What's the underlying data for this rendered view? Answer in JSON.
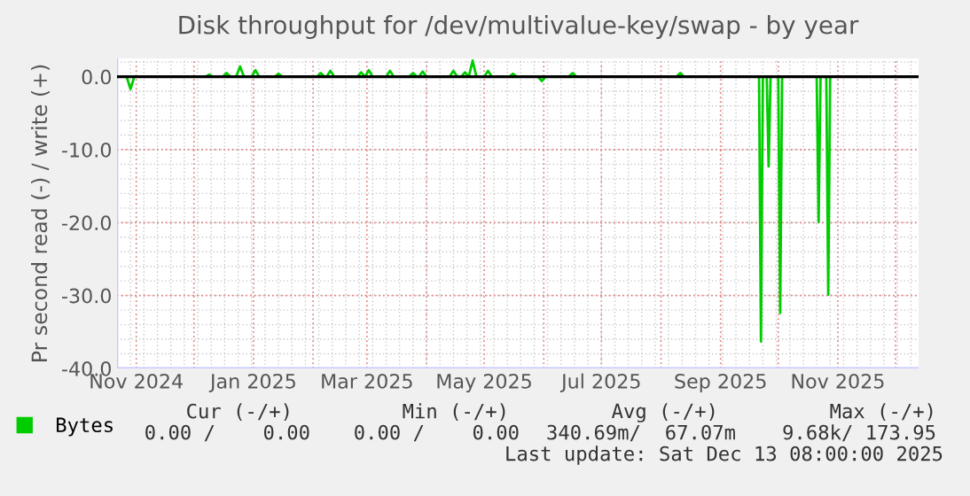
{
  "chart_data": {
    "type": "line",
    "title": "Disk throughput for /dev/multivalue-key/swap - by year",
    "ylabel": "Pr second read (-) / write (+)",
    "xlim": [
      "2024-10-22",
      "2025-12-13"
    ],
    "ylim": [
      -40,
      2.5
    ],
    "yticks": [
      {
        "value": 0,
        "label": "0.0"
      },
      {
        "value": -10,
        "label": "-10.0"
      },
      {
        "value": -20,
        "label": "-20.0"
      },
      {
        "value": -30,
        "label": "-30.0"
      },
      {
        "value": -40,
        "label": "-40.0"
      }
    ],
    "xticks": [
      {
        "value": "2024-11-01",
        "label": "Nov 2024"
      },
      {
        "value": "2024-12-01",
        "label": null
      },
      {
        "value": "2025-01-01",
        "label": "Jan 2025"
      },
      {
        "value": "2025-02-01",
        "label": null
      },
      {
        "value": "2025-03-01",
        "label": "Mar 2025"
      },
      {
        "value": "2025-04-01",
        "label": null
      },
      {
        "value": "2025-05-01",
        "label": "May 2025"
      },
      {
        "value": "2025-06-01",
        "label": null
      },
      {
        "value": "2025-07-01",
        "label": "Jul 2025"
      },
      {
        "value": "2025-08-01",
        "label": null
      },
      {
        "value": "2025-09-01",
        "label": "Sep 2025"
      },
      {
        "value": "2025-10-01",
        "label": null
      },
      {
        "value": "2025-11-01",
        "label": "Nov 2025"
      },
      {
        "value": "2025-12-01",
        "label": null
      }
    ],
    "grid": true,
    "legend": "bottom",
    "ref_lines": [
      {
        "axis": "y",
        "value": 0,
        "color": "#000000"
      }
    ],
    "series": [
      {
        "name": "Bytes",
        "color": "#00cc00",
        "x": [
          "2024-10-22",
          "2024-10-27",
          "2024-10-29",
          "2024-10-31",
          "2024-12-07",
          "2024-12-09",
          "2024-12-11",
          "2024-12-16",
          "2024-12-18",
          "2024-12-20",
          "2024-12-23",
          "2024-12-25",
          "2024-12-27",
          "2024-12-31",
          "2025-01-02",
          "2025-01-04",
          "2025-01-12",
          "2025-01-14",
          "2025-01-16",
          "2025-02-03",
          "2025-02-05",
          "2025-02-07",
          "2025-02-08",
          "2025-02-10",
          "2025-02-12",
          "2025-02-24",
          "2025-02-26",
          "2025-02-28",
          "2025-03-02",
          "2025-03-04",
          "2025-03-11",
          "2025-03-13",
          "2025-03-15",
          "2025-03-23",
          "2025-03-25",
          "2025-03-27",
          "2025-03-28",
          "2025-03-30",
          "2025-04-01",
          "2025-04-13",
          "2025-04-15",
          "2025-04-17",
          "2025-04-19",
          "2025-04-21",
          "2025-04-23",
          "2025-04-25",
          "2025-04-27",
          "2025-05-01",
          "2025-05-03",
          "2025-05-05",
          "2025-05-14",
          "2025-05-16",
          "2025-05-18",
          "2025-05-29",
          "2025-05-31",
          "2025-06-02",
          "2025-06-14",
          "2025-06-16",
          "2025-06-18",
          "2025-08-09",
          "2025-08-11",
          "2025-08-13",
          "2025-09-21",
          "2025-09-22",
          "2025-09-23",
          "2025-09-25",
          "2025-09-26",
          "2025-09-27",
          "2025-10-01",
          "2025-10-02",
          "2025-10-03",
          "2025-10-21",
          "2025-10-22",
          "2025-10-23",
          "2025-10-26",
          "2025-10-27",
          "2025-10-28",
          "2025-12-13"
        ],
        "values": [
          0,
          0,
          -1.7,
          0,
          0,
          0.3,
          0,
          0,
          0.5,
          0,
          0,
          1.4,
          0,
          0,
          0.9,
          0,
          0,
          0.4,
          0,
          0,
          0.5,
          0,
          0,
          0.8,
          0,
          0,
          0.6,
          0,
          0.9,
          0,
          0,
          0.8,
          0,
          0,
          0.5,
          0,
          0,
          0.7,
          0,
          0,
          0.8,
          0,
          0,
          0.6,
          0,
          2.2,
          0,
          0,
          0.8,
          0,
          0,
          0.4,
          0,
          0,
          -0.6,
          0,
          0,
          0.5,
          0,
          0,
          0.5,
          0,
          0,
          -36.3,
          0,
          0,
          -12.3,
          0,
          0,
          -32.4,
          0,
          0,
          -19.9,
          0,
          0,
          -29.9,
          0,
          0
        ]
      }
    ],
    "annotations": [
      "Cur (-/+)",
      "Min (-/+)",
      "Avg (-/+)",
      "Max (-/+)",
      "0.00 /    0.00",
      "0.00 /    0.00",
      "340.69m/  67.07m",
      "9.68k/ 173.95",
      "Last update: Sat Dec 13 08:00:00 2025"
    ]
  }
}
